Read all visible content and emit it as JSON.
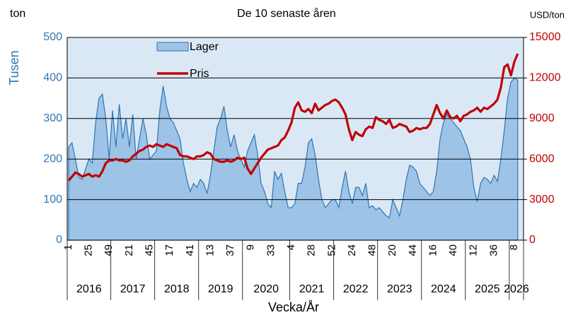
{
  "chart_data": {
    "type": "area-line",
    "title": "De 10 senaste åren",
    "y_unit": "ton",
    "y2_unit": "USD/ton",
    "y_label": "Tusen",
    "x_label": "Vecka/År",
    "categories": [
      "1",
      null,
      null,
      null,
      null,
      null,
      "25",
      null,
      null,
      null,
      null,
      null,
      "49",
      null,
      null,
      null,
      null,
      null,
      "21",
      null,
      null,
      null,
      null,
      null,
      "45",
      null,
      null,
      null,
      null,
      null,
      "17",
      null,
      null,
      null,
      null,
      null,
      "41",
      null,
      null,
      null,
      null,
      null,
      "13",
      null,
      null,
      null,
      null,
      null,
      "37",
      null,
      null,
      null,
      null,
      null,
      "9",
      null,
      null,
      null,
      null,
      null,
      "33",
      null,
      null,
      null,
      null,
      null,
      "4",
      null,
      null,
      null,
      null,
      null,
      "28",
      null,
      null,
      null,
      null,
      null,
      "52",
      null,
      null,
      null,
      null,
      null,
      "24",
      null,
      null,
      null,
      null,
      null,
      "48",
      null,
      null,
      null,
      null,
      null,
      "20",
      null,
      null,
      null,
      null,
      null,
      "44",
      null,
      null,
      null,
      null,
      null,
      "16",
      null,
      null,
      null,
      null,
      null,
      "40",
      null,
      null,
      null,
      null,
      null,
      "12",
      null,
      null,
      null,
      null,
      null,
      "36",
      null,
      null,
      null,
      null,
      null,
      "8",
      null
    ],
    "groups": [
      {
        "label": "2016",
        "count": 13
      },
      {
        "label": "2017",
        "count": 13
      },
      {
        "label": "2018",
        "count": 13
      },
      {
        "label": "2019",
        "count": 13
      },
      {
        "label": "2020",
        "count": 14
      },
      {
        "label": "2021",
        "count": 13
      },
      {
        "label": "2022",
        "count": 13
      },
      {
        "label": "2023",
        "count": 13
      },
      {
        "label": "2024",
        "count": 13
      },
      {
        "label": "2025",
        "count": 13
      },
      {
        "label": "2026",
        "count": 3
      }
    ],
    "series": [
      {
        "name": "Lager",
        "kind": "area",
        "color": "#9dc3e6",
        "edge_color": "#2e75b6",
        "values": [
          230,
          240,
          200,
          155,
          150,
          175,
          200,
          190,
          290,
          350,
          360,
          300,
          200,
          320,
          230,
          335,
          250,
          300,
          230,
          310,
          200,
          250,
          300,
          260,
          200,
          210,
          220,
          320,
          380,
          330,
          300,
          290,
          270,
          250,
          190,
          150,
          120,
          140,
          130,
          150,
          140,
          115,
          160,
          220,
          280,
          300,
          330,
          270,
          230,
          260,
          220,
          200,
          180,
          220,
          240,
          260,
          210,
          140,
          120,
          90,
          80,
          170,
          150,
          165,
          120,
          80,
          80,
          90,
          140,
          140,
          180,
          240,
          250,
          210,
          150,
          100,
          80,
          90,
          100,
          100,
          80,
          130,
          170,
          120,
          90,
          130,
          130,
          110,
          140,
          80,
          85,
          75,
          80,
          70,
          60,
          55,
          100,
          80,
          60,
          100,
          150,
          185,
          180,
          170,
          140,
          130,
          120,
          110,
          120,
          170,
          250,
          290,
          310,
          300,
          290,
          280,
          270,
          250,
          230,
          200,
          130,
          95,
          140,
          155,
          150,
          140,
          160,
          145,
          200,
          270,
          350,
          390,
          400,
          395
        ]
      },
      {
        "name": "Pris",
        "kind": "line",
        "axis": "y2",
        "color": "#c00000",
        "values": [
          4400,
          4700,
          5000,
          4900,
          4700,
          4800,
          4900,
          4700,
          4800,
          4700,
          5100,
          5700,
          5900,
          5900,
          6000,
          5900,
          5900,
          5800,
          5900,
          6200,
          6400,
          6600,
          6700,
          6900,
          7000,
          6900,
          7100,
          7000,
          6900,
          7100,
          7000,
          6900,
          6800,
          6300,
          6200,
          6200,
          6100,
          6000,
          6200,
          6200,
          6300,
          6500,
          6400,
          6000,
          5900,
          5800,
          5800,
          5900,
          5800,
          5900,
          6100,
          6000,
          6100,
          5300,
          4900,
          5300,
          5700,
          6100,
          6400,
          6700,
          6800,
          6900,
          7000,
          7400,
          7600,
          8100,
          8700,
          9800,
          10200,
          9600,
          9500,
          9700,
          9400,
          10100,
          9600,
          9800,
          10000,
          10100,
          10300,
          10400,
          10200,
          9800,
          9300,
          8200,
          7400,
          8000,
          7800,
          7700,
          8200,
          8400,
          8300,
          9100,
          8900,
          8800,
          8600,
          8900,
          8300,
          8400,
          8600,
          8500,
          8400,
          8000,
          8100,
          8300,
          8200,
          8300,
          8300,
          8600,
          9300,
          10000,
          9400,
          9000,
          9600,
          9100,
          9000,
          9200,
          8800,
          9200,
          9300,
          9500,
          9600,
          9800,
          9500,
          9800,
          9700,
          9900,
          10100,
          10400,
          11300,
          12800,
          13000,
          12200,
          13200,
          13800
        ]
      }
    ],
    "ylim": [
      0,
      500
    ],
    "yticks": [
      0,
      100,
      200,
      300,
      400,
      500
    ],
    "y_color": "#2e75b6",
    "y2lim": [
      0,
      15000
    ],
    "y2ticks": [
      0,
      3000,
      6000,
      9000,
      12000,
      15000
    ],
    "y2_color": "#c00000",
    "grid": true,
    "plot_background": "#dae8f5",
    "legend": "top-left"
  }
}
